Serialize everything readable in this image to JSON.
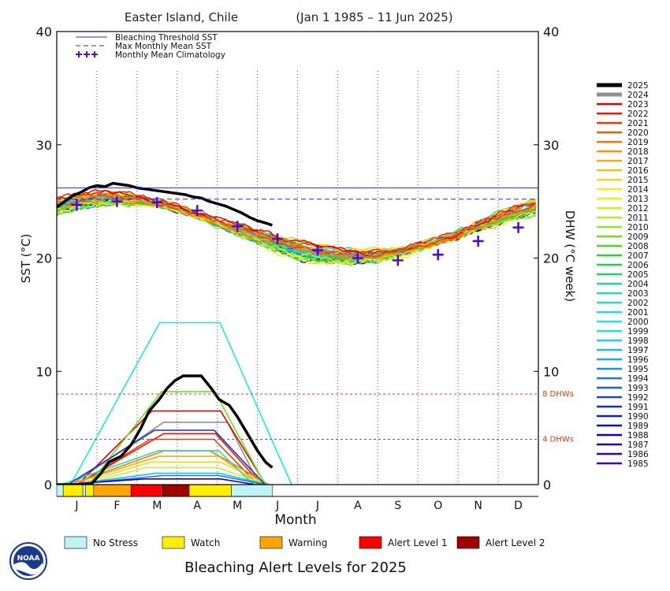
{
  "chart_data": {
    "type": "line",
    "title": "Easter Island, Chile",
    "date_range": "(Jan 1 1985 – 11 Jun 2025)",
    "xlabel": "Month",
    "ylabel_left": "SST (°C)",
    "ylabel_right": "DHW (°C week)",
    "ylim": [
      0,
      40
    ],
    "yticks": [
      0,
      10,
      20,
      30,
      40
    ],
    "months": [
      "J",
      "F",
      "M",
      "A",
      "M",
      "J",
      "J",
      "A",
      "S",
      "O",
      "N",
      "D"
    ],
    "grid": "vertical dotted month dividers",
    "legend": {
      "placement": "top-left",
      "items": [
        {
          "label": "Bleaching Threshold SST",
          "style": "solid",
          "color": "#3030a0"
        },
        {
          "label": "Max Monthly Mean SST",
          "style": "dashed",
          "color": "#3030a0"
        },
        {
          "label": "Monthly Mean Climatology",
          "style": "plus",
          "color": "#5010c0"
        }
      ]
    },
    "bleaching_threshold_sst": 26.2,
    "max_monthly_mean_sst": 25.2,
    "climatology": [
      {
        "month": 0.5,
        "value": 24.7
      },
      {
        "month": 1.5,
        "value": 25.0
      },
      {
        "month": 2.5,
        "value": 24.9
      },
      {
        "month": 3.5,
        "value": 24.2
      },
      {
        "month": 4.5,
        "value": 22.8
      },
      {
        "month": 5.5,
        "value": 21.7
      },
      {
        "month": 6.5,
        "value": 20.7
      },
      {
        "month": 7.5,
        "value": 20.0
      },
      {
        "month": 8.5,
        "value": 19.8
      },
      {
        "month": 9.5,
        "value": 20.3
      },
      {
        "month": 10.5,
        "value": 21.5
      },
      {
        "month": 11.5,
        "value": 22.7
      }
    ],
    "dhw_thresholds": [
      {
        "value": 8,
        "label": "8 DHWs"
      },
      {
        "value": 4,
        "label": "4 DHWs"
      }
    ],
    "series_2025_sst": [
      [
        0.0,
        24.5
      ],
      [
        0.2,
        25.0
      ],
      [
        0.4,
        25.5
      ],
      [
        0.6,
        25.8
      ],
      [
        0.8,
        26.2
      ],
      [
        1.0,
        26.4
      ],
      [
        1.2,
        26.3
      ],
      [
        1.4,
        26.6
      ],
      [
        1.6,
        26.5
      ],
      [
        1.8,
        26.4
      ],
      [
        2.0,
        26.2
      ],
      [
        2.2,
        26.1
      ],
      [
        2.4,
        26.0
      ],
      [
        2.6,
        25.9
      ],
      [
        2.8,
        25.8
      ],
      [
        3.0,
        25.7
      ],
      [
        3.2,
        25.6
      ],
      [
        3.4,
        25.4
      ],
      [
        3.6,
        25.3
      ],
      [
        3.8,
        25.0
      ],
      [
        4.0,
        24.8
      ],
      [
        4.2,
        24.6
      ],
      [
        4.4,
        24.3
      ],
      [
        4.6,
        24.0
      ],
      [
        4.8,
        23.6
      ],
      [
        5.0,
        23.3
      ],
      [
        5.2,
        23.1
      ],
      [
        5.37,
        22.9
      ]
    ],
    "series_2025_dhw": [
      [
        0.0,
        0.0
      ],
      [
        0.85,
        0.0
      ],
      [
        1.1,
        1.0
      ],
      [
        1.3,
        2.0
      ],
      [
        1.6,
        2.5
      ],
      [
        1.85,
        3.5
      ],
      [
        2.1,
        5.0
      ],
      [
        2.3,
        6.5
      ],
      [
        2.55,
        7.5
      ],
      [
        2.75,
        8.5
      ],
      [
        2.95,
        9.2
      ],
      [
        3.15,
        9.6
      ],
      [
        3.6,
        9.6
      ],
      [
        3.85,
        8.5
      ],
      [
        4.05,
        7.5
      ],
      [
        4.3,
        7.0
      ],
      [
        4.5,
        6.0
      ],
      [
        4.75,
        4.5
      ],
      [
        5.0,
        3.0
      ],
      [
        5.2,
        2.0
      ],
      [
        5.37,
        1.5
      ]
    ],
    "series_years": [
      "2025",
      "2024",
      "2023",
      "2022",
      "2021",
      "2020",
      "2019",
      "2018",
      "2017",
      "2016",
      "2015",
      "2014",
      "2013",
      "2012",
      "2011",
      "2010",
      "2009",
      "2008",
      "2007",
      "2006",
      "2005",
      "2004",
      "2003",
      "2002",
      "2001",
      "2000",
      "1999",
      "1998",
      "1997",
      "1996",
      "1995",
      "1994",
      "1993",
      "1992",
      "1991",
      "1990",
      "1989",
      "1988",
      "1987",
      "1986",
      "1985"
    ],
    "series_colors": [
      "#000000",
      "#909090",
      "#e00000",
      "#ee1800",
      "#f03800",
      "#f05c00",
      "#f07a00",
      "#f4960a",
      "#f4ac14",
      "#f4c018",
      "#f8d81c",
      "#f8ec20",
      "#e8f020",
      "#ccf020",
      "#b0ee20",
      "#8ce820",
      "#6ce020",
      "#50d820",
      "#30d030",
      "#20d050",
      "#20d070",
      "#20d890",
      "#20e0b0",
      "#20e0c8",
      "#20e0d8",
      "#20e8e0",
      "#20e0f0",
      "#20d0f0",
      "#20bcf0",
      "#20a8f0",
      "#1890ec",
      "#1878e4",
      "#1860dc",
      "#1848d4",
      "#1030cc",
      "#1020c4",
      "#1010c0",
      "#1000b8",
      "#2000c0",
      "#3000c8",
      "#4000d0"
    ],
    "alert_bar": {
      "title": "Bleaching Alert Levels for 2025",
      "segments": [
        {
          "level": "No Stress",
          "start": 0.0,
          "end": 0.16
        },
        {
          "level": "Watch",
          "start": 0.16,
          "end": 0.65
        },
        {
          "level": "No Stress",
          "start": 0.65,
          "end": 0.72
        },
        {
          "level": "Watch",
          "start": 0.72,
          "end": 0.92
        },
        {
          "level": "Warning",
          "start": 0.92,
          "end": 1.85
        },
        {
          "level": "Alert Level 1",
          "start": 1.85,
          "end": 2.64
        },
        {
          "level": "Alert Level 2",
          "start": 2.64,
          "end": 3.3
        },
        {
          "level": "Watch",
          "start": 3.3,
          "end": 4.35
        },
        {
          "level": "No Stress",
          "start": 4.35,
          "end": 5.37
        }
      ],
      "legend": [
        {
          "label": "No Stress",
          "color": "#c0f4f4"
        },
        {
          "label": "Watch",
          "color": "#ffee00"
        },
        {
          "label": "Warning",
          "color": "#ffa400"
        },
        {
          "label": "Alert Level 1",
          "color": "#ff0000"
        },
        {
          "label": "Alert Level 2",
          "color": "#a00000"
        }
      ]
    }
  },
  "logo": {
    "text": "NOAA"
  }
}
